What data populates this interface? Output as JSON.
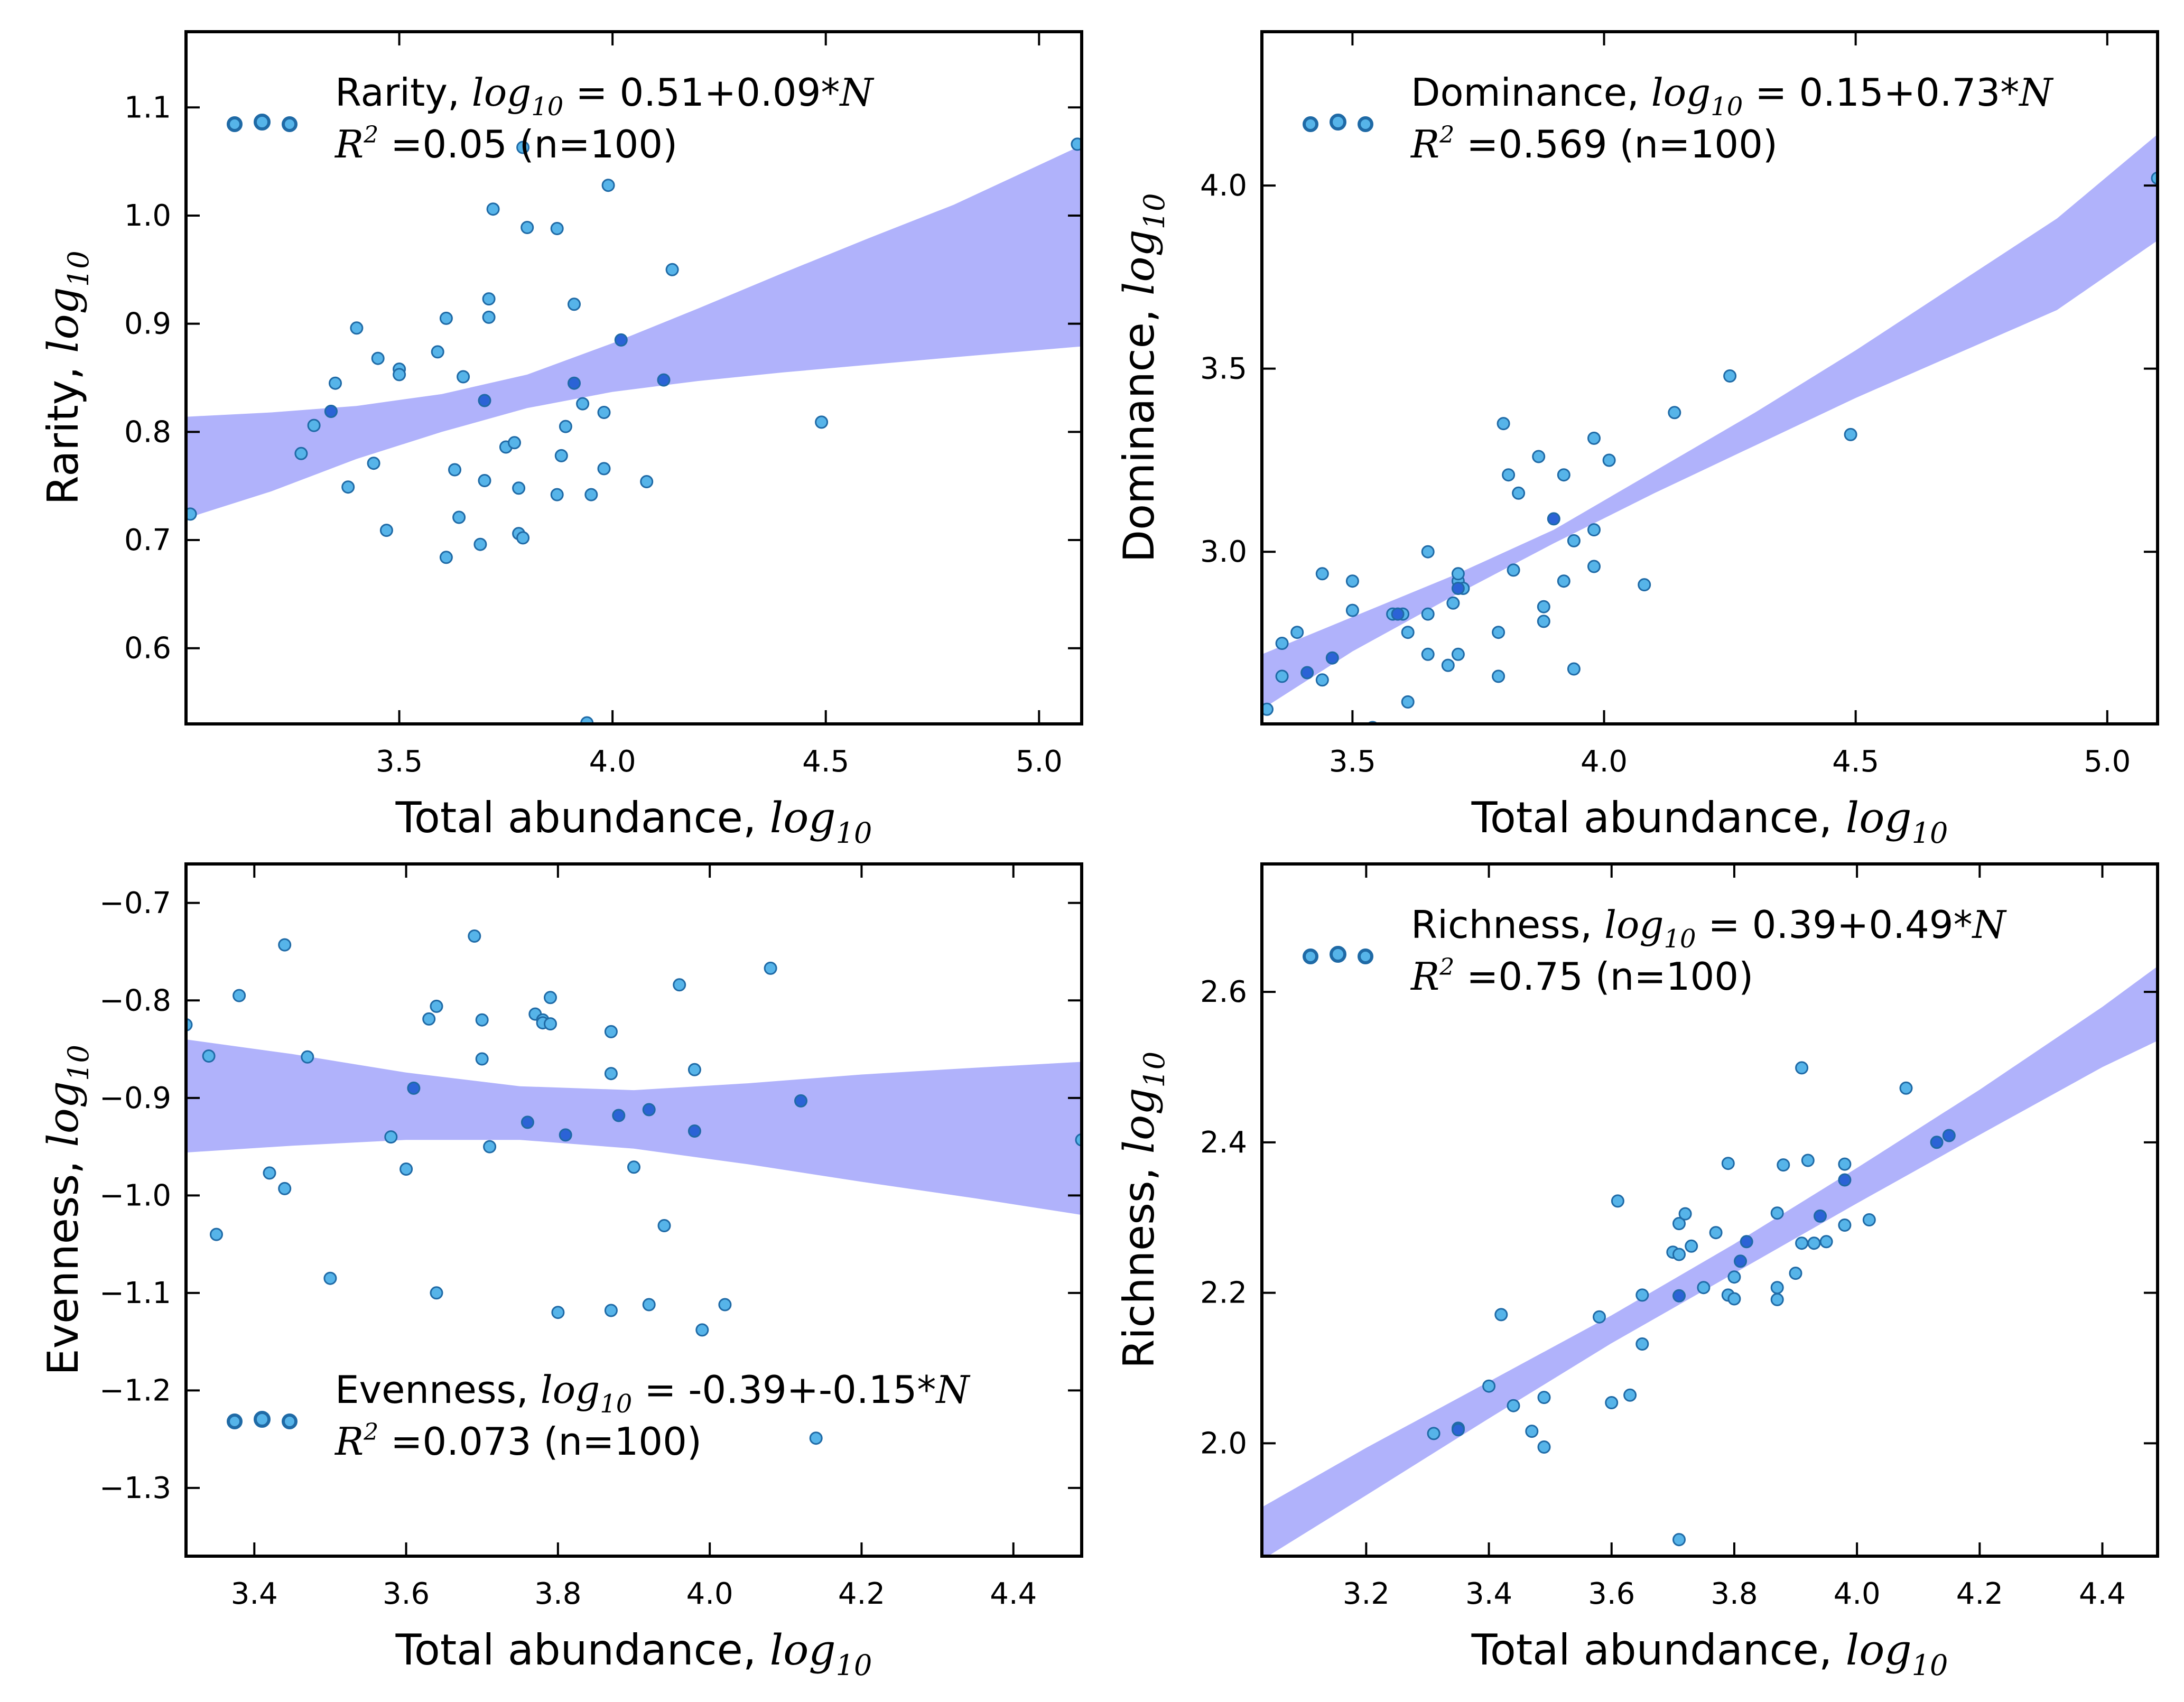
{
  "figure": {
    "style": {
      "band_color": "#b0b2fb",
      "point_fill": "#56b4e9",
      "point_dark_fill": "#2b63d6",
      "point_stroke": "#1f6aa6",
      "axis_color": "#000000"
    }
  },
  "chart_data": [
    {
      "id": "rarity",
      "type": "scatter",
      "title": "",
      "xlabel": "Total abundance, ",
      "xlabel_math": "log10",
      "ylabel": "Rarity, ",
      "ylabel_math": "log10",
      "legend_position": "top-left",
      "xlim": [
        3.0,
        5.1
      ],
      "ylim": [
        0.53,
        1.17
      ],
      "xticks": [
        3.5,
        4.0,
        4.5,
        5.0
      ],
      "xtick_labels": [
        "3.5",
        "4.0",
        "4.5",
        "5.0"
      ],
      "yticks": [
        0.6,
        0.7,
        0.8,
        0.9,
        1.0,
        1.1
      ],
      "ytick_labels": [
        "0.6",
        "0.7",
        "0.8",
        "0.9",
        "1.0",
        "1.1"
      ],
      "annotation": {
        "eq_label": "Rarity, ",
        "eq_math": "log10",
        "eq_value": " = 0.51+0.09*",
        "eq_var": "N",
        "r2_symbol": "R",
        "r2_exp": "2",
        "r2_value": " =0.05 (n=100)"
      },
      "band": {
        "x": [
          3.0,
          3.2,
          3.4,
          3.6,
          3.8,
          4.0,
          4.2,
          4.4,
          4.6,
          4.8,
          5.1
        ],
        "lower": [
          0.72,
          0.745,
          0.775,
          0.8,
          0.822,
          0.837,
          0.847,
          0.855,
          0.862,
          0.869,
          0.879
        ],
        "upper": [
          0.814,
          0.818,
          0.824,
          0.835,
          0.853,
          0.882,
          0.914,
          0.947,
          0.979,
          1.01,
          1.065
        ]
      },
      "points": [
        [
          3.01,
          0.724
        ],
        [
          3.27,
          0.78
        ],
        [
          3.3,
          0.806
        ],
        [
          3.34,
          0.819
        ],
        [
          3.35,
          0.845
        ],
        [
          3.38,
          0.749
        ],
        [
          3.4,
          0.896
        ],
        [
          3.44,
          0.771
        ],
        [
          3.45,
          0.868
        ],
        [
          3.47,
          0.709
        ],
        [
          3.5,
          0.858
        ],
        [
          3.5,
          0.853
        ],
        [
          3.59,
          0.874
        ],
        [
          3.61,
          0.905
        ],
        [
          3.61,
          0.684
        ],
        [
          3.63,
          0.765
        ],
        [
          3.64,
          0.721
        ],
        [
          3.65,
          0.851
        ],
        [
          3.69,
          0.696
        ],
        [
          3.7,
          0.755
        ],
        [
          3.71,
          0.923
        ],
        [
          3.71,
          0.906
        ],
        [
          3.72,
          1.006
        ],
        [
          3.75,
          0.786
        ],
        [
          3.77,
          0.79
        ],
        [
          3.78,
          0.706
        ],
        [
          3.78,
          0.748
        ],
        [
          3.79,
          0.702
        ],
        [
          3.79,
          1.063
        ],
        [
          3.8,
          0.989
        ],
        [
          3.87,
          0.988
        ],
        [
          3.87,
          0.742
        ],
        [
          3.88,
          0.778
        ],
        [
          3.89,
          0.805
        ],
        [
          3.91,
          0.918
        ],
        [
          3.93,
          0.826
        ],
        [
          3.94,
          0.531
        ],
        [
          3.95,
          0.742
        ],
        [
          3.98,
          0.818
        ],
        [
          3.98,
          0.766
        ],
        [
          3.99,
          1.028
        ],
        [
          4.08,
          0.754
        ],
        [
          4.14,
          0.95
        ],
        [
          4.49,
          0.809
        ],
        [
          5.09,
          1.066
        ]
      ],
      "dark_points": [
        [
          3.34,
          0.819
        ],
        [
          3.7,
          0.829
        ],
        [
          3.91,
          0.845
        ],
        [
          4.02,
          0.885
        ],
        [
          4.12,
          0.848
        ]
      ]
    },
    {
      "id": "dominance",
      "type": "scatter",
      "title": "",
      "xlabel": "Total abundance, ",
      "xlabel_math": "log10",
      "ylabel": "Dominance, ",
      "ylabel_math": "log10",
      "legend_position": "top-left",
      "xlim": [
        3.32,
        5.1
      ],
      "ylim": [
        2.53,
        4.42
      ],
      "xticks": [
        3.5,
        4.0,
        4.5,
        5.0
      ],
      "xtick_labels": [
        "3.5",
        "4.0",
        "4.5",
        "5.0"
      ],
      "yticks": [
        3.0,
        3.5,
        4.0
      ],
      "ytick_labels": [
        "3.0",
        "3.5",
        "4.0"
      ],
      "annotation": {
        "eq_label": "Dominance, ",
        "eq_math": "log10",
        "eq_value": " = 0.15+0.73*",
        "eq_var": "N",
        "r2_symbol": "R",
        "r2_exp": "2",
        "r2_value": " =0.569 (n=100)"
      },
      "band": {
        "x": [
          3.32,
          3.5,
          3.7,
          3.9,
          4.1,
          4.3,
          4.5,
          4.7,
          4.9,
          5.1
        ],
        "lower": [
          2.57,
          2.728,
          2.879,
          3.023,
          3.16,
          3.29,
          3.42,
          3.54,
          3.66,
          3.85
        ],
        "upper": [
          2.72,
          2.822,
          2.935,
          3.06,
          3.22,
          3.38,
          3.55,
          3.73,
          3.91,
          4.14
        ]
      },
      "points": [
        [
          3.33,
          2.57
        ],
        [
          3.36,
          2.75
        ],
        [
          3.36,
          2.66
        ],
        [
          3.39,
          2.78
        ],
        [
          3.44,
          2.94
        ],
        [
          3.44,
          2.65
        ],
        [
          3.5,
          2.92
        ],
        [
          3.5,
          2.84
        ],
        [
          3.54,
          2.52
        ],
        [
          3.58,
          2.83
        ],
        [
          3.6,
          2.83
        ],
        [
          3.61,
          2.78
        ],
        [
          3.61,
          2.59
        ],
        [
          3.65,
          3.0
        ],
        [
          3.65,
          2.83
        ],
        [
          3.65,
          2.72
        ],
        [
          3.69,
          2.69
        ],
        [
          3.7,
          2.86
        ],
        [
          3.71,
          2.92
        ],
        [
          3.71,
          2.94
        ],
        [
          3.71,
          2.72
        ],
        [
          3.72,
          2.9
        ],
        [
          3.79,
          2.78
        ],
        [
          3.79,
          2.66
        ],
        [
          3.8,
          3.35
        ],
        [
          3.81,
          3.21
        ],
        [
          3.82,
          2.95
        ],
        [
          3.83,
          3.16
        ],
        [
          3.87,
          3.26
        ],
        [
          3.88,
          2.81
        ],
        [
          3.88,
          2.85
        ],
        [
          3.92,
          3.21
        ],
        [
          3.92,
          2.92
        ],
        [
          3.94,
          3.03
        ],
        [
          3.94,
          2.68
        ],
        [
          3.98,
          3.06
        ],
        [
          3.98,
          2.96
        ],
        [
          3.98,
          3.31
        ],
        [
          4.01,
          3.25
        ],
        [
          4.08,
          2.91
        ],
        [
          4.14,
          3.38
        ],
        [
          4.25,
          3.48
        ],
        [
          4.49,
          3.32
        ],
        [
          5.1,
          4.02
        ]
      ],
      "dark_points": [
        [
          3.41,
          2.67
        ],
        [
          3.46,
          2.71
        ],
        [
          3.59,
          2.83
        ],
        [
          3.71,
          2.9
        ],
        [
          3.9,
          3.09
        ]
      ]
    },
    {
      "id": "evenness",
      "type": "scatter",
      "title": "",
      "xlabel": "Total abundance, ",
      "xlabel_math": "log10",
      "ylabel": "Evenness, ",
      "ylabel_math": "log10",
      "legend_position": "bottom-left",
      "xlim": [
        3.31,
        4.49
      ],
      "ylim": [
        -1.37,
        -0.66
      ],
      "xticks": [
        3.4,
        3.6,
        3.8,
        4.0,
        4.2,
        4.4
      ],
      "xtick_labels": [
        "3.4",
        "3.6",
        "3.8",
        "4.0",
        "4.2",
        "4.4"
      ],
      "yticks": [
        -1.3,
        -1.2,
        -1.1,
        -1.0,
        -0.9,
        -0.8,
        -0.7
      ],
      "ytick_labels": [
        "−1.3",
        "−1.2",
        "−1.1",
        "−1.0",
        "−0.9",
        "−0.8",
        "−0.7"
      ],
      "annotation": {
        "eq_label": "Evenness, ",
        "eq_math": "log10",
        "eq_value": " = -0.39+-0.15*",
        "eq_var": "N",
        "r2_symbol": "R",
        "r2_exp": "2",
        "r2_value": " =0.073 (n=100)"
      },
      "band": {
        "x": [
          3.31,
          3.45,
          3.6,
          3.75,
          3.9,
          4.05,
          4.2,
          4.35,
          4.49
        ],
        "lower": [
          -0.956,
          -0.949,
          -0.943,
          -0.943,
          -0.952,
          -0.968,
          -0.986,
          -1.003,
          -1.02
        ],
        "upper": [
          -0.84,
          -0.855,
          -0.874,
          -0.888,
          -0.892,
          -0.885,
          -0.876,
          -0.869,
          -0.863
        ]
      },
      "points": [
        [
          3.31,
          -0.825
        ],
        [
          3.34,
          -0.857
        ],
        [
          3.35,
          -1.04
        ],
        [
          3.38,
          -0.795
        ],
        [
          3.42,
          -0.977
        ],
        [
          3.44,
          -0.743
        ],
        [
          3.44,
          -0.993
        ],
        [
          3.47,
          -0.858
        ],
        [
          3.5,
          -1.085
        ],
        [
          3.58,
          -0.94
        ],
        [
          3.6,
          -0.973
        ],
        [
          3.63,
          -0.819
        ],
        [
          3.64,
          -0.806
        ],
        [
          3.64,
          -1.1
        ],
        [
          3.69,
          -0.734
        ],
        [
          3.7,
          -0.82
        ],
        [
          3.7,
          -0.86
        ],
        [
          3.71,
          -0.95
        ],
        [
          3.77,
          -0.814
        ],
        [
          3.78,
          -0.82
        ],
        [
          3.78,
          -0.823
        ],
        [
          3.79,
          -0.797
        ],
        [
          3.79,
          -0.824
        ],
        [
          3.8,
          -1.12
        ],
        [
          3.87,
          -0.875
        ],
        [
          3.87,
          -0.832
        ],
        [
          3.87,
          -1.118
        ],
        [
          3.9,
          -0.971
        ],
        [
          3.92,
          -1.112
        ],
        [
          3.94,
          -1.031
        ],
        [
          3.96,
          -0.784
        ],
        [
          3.98,
          -0.871
        ],
        [
          3.99,
          -1.138
        ],
        [
          4.02,
          -1.112
        ],
        [
          4.08,
          -0.767
        ],
        [
          4.14,
          -1.249
        ],
        [
          4.49,
          -0.943
        ]
      ],
      "dark_points": [
        [
          3.61,
          -0.89
        ],
        [
          3.76,
          -0.925
        ],
        [
          3.81,
          -0.938
        ],
        [
          3.88,
          -0.918
        ],
        [
          3.92,
          -0.912
        ],
        [
          3.98,
          -0.934
        ],
        [
          4.12,
          -0.903
        ]
      ]
    },
    {
      "id": "richness",
      "type": "scatter",
      "title": "",
      "xlabel": "Total abundance, ",
      "xlabel_math": "log10",
      "ylabel": "Richness, ",
      "ylabel_math": "log10",
      "legend_position": "top-left",
      "xlim": [
        3.03,
        4.49
      ],
      "ylim": [
        1.85,
        2.77
      ],
      "xticks": [
        3.2,
        3.4,
        3.6,
        3.8,
        4.0,
        4.2,
        4.4
      ],
      "xtick_labels": [
        "3.2",
        "3.4",
        "3.6",
        "3.8",
        "4.0",
        "4.2",
        "4.4"
      ],
      "yticks": [
        2.0,
        2.2,
        2.4,
        2.6
      ],
      "ytick_labels": [
        "2.0",
        "2.2",
        "2.4",
        "2.6"
      ],
      "annotation": {
        "eq_label": "Richness, ",
        "eq_math": "log10",
        "eq_value": " = 0.39+0.49*",
        "eq_var": "N",
        "r2_symbol": "R",
        "r2_exp": "2",
        "r2_value": " =0.75 (n=100)"
      },
      "band": {
        "x": [
          3.03,
          3.2,
          3.4,
          3.6,
          3.8,
          4.0,
          4.2,
          4.4,
          4.49
        ],
        "lower": [
          1.845,
          1.931,
          2.033,
          2.133,
          2.226,
          2.319,
          2.41,
          2.5,
          2.535
        ],
        "upper": [
          1.915,
          1.994,
          2.082,
          2.17,
          2.265,
          2.366,
          2.47,
          2.58,
          2.634
        ]
      },
      "points": [
        [
          3.31,
          2.013
        ],
        [
          3.35,
          2.02
        ],
        [
          3.4,
          2.076
        ],
        [
          3.42,
          2.171
        ],
        [
          3.44,
          2.05
        ],
        [
          3.47,
          2.016
        ],
        [
          3.49,
          1.995
        ],
        [
          3.49,
          2.061
        ],
        [
          3.58,
          2.168
        ],
        [
          3.6,
          2.054
        ],
        [
          3.61,
          2.322
        ],
        [
          3.63,
          2.064
        ],
        [
          3.65,
          2.132
        ],
        [
          3.65,
          2.197
        ],
        [
          3.7,
          2.254
        ],
        [
          3.71,
          2.251
        ],
        [
          3.71,
          1.872
        ],
        [
          3.71,
          2.292
        ],
        [
          3.72,
          2.305
        ],
        [
          3.73,
          2.262
        ],
        [
          3.75,
          2.207
        ],
        [
          3.77,
          2.28
        ],
        [
          3.79,
          2.197
        ],
        [
          3.79,
          2.372
        ],
        [
          3.8,
          2.192
        ],
        [
          3.8,
          2.221
        ],
        [
          3.87,
          2.207
        ],
        [
          3.87,
          2.191
        ],
        [
          3.87,
          2.306
        ],
        [
          3.88,
          2.37
        ],
        [
          3.9,
          2.226
        ],
        [
          3.91,
          2.499
        ],
        [
          3.91,
          2.266
        ],
        [
          3.92,
          2.376
        ],
        [
          3.93,
          2.266
        ],
        [
          3.95,
          2.268
        ],
        [
          3.98,
          2.371
        ],
        [
          3.98,
          2.29
        ],
        [
          4.02,
          2.297
        ],
        [
          4.08,
          2.472
        ]
      ],
      "dark_points": [
        [
          3.35,
          2.018
        ],
        [
          3.71,
          2.196
        ],
        [
          3.81,
          2.242
        ],
        [
          3.82,
          2.268
        ],
        [
          3.94,
          2.302
        ],
        [
          3.98,
          2.35
        ],
        [
          4.13,
          2.4
        ],
        [
          4.15,
          2.409
        ]
      ]
    }
  ]
}
